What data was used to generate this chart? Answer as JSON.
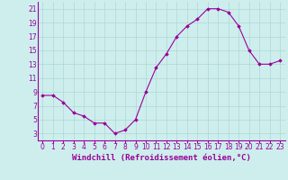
{
  "x": [
    0,
    1,
    2,
    3,
    4,
    5,
    6,
    7,
    8,
    9,
    10,
    11,
    12,
    13,
    14,
    15,
    16,
    17,
    18,
    19,
    20,
    21,
    22,
    23
  ],
  "y": [
    8.5,
    8.5,
    7.5,
    6.0,
    5.5,
    4.5,
    4.5,
    3.0,
    3.5,
    5.0,
    9.0,
    12.5,
    14.5,
    17.0,
    18.5,
    19.5,
    21.0,
    21.0,
    20.5,
    18.5,
    15.0,
    13.0,
    13.0,
    13.5
  ],
  "line_color": "#990099",
  "marker": "D",
  "marker_size": 1.8,
  "xlabel": "Windchill (Refroidissement éolien,°C)",
  "xlim": [
    -0.5,
    23.5
  ],
  "ylim": [
    2,
    22
  ],
  "yticks": [
    3,
    5,
    7,
    9,
    11,
    13,
    15,
    17,
    19,
    21
  ],
  "xticks": [
    0,
    1,
    2,
    3,
    4,
    5,
    6,
    7,
    8,
    9,
    10,
    11,
    12,
    13,
    14,
    15,
    16,
    17,
    18,
    19,
    20,
    21,
    22,
    23
  ],
  "bg_color": "#cdeeed",
  "grid_color": "#aed8d5",
  "tick_label_fontsize": 5.5,
  "xlabel_fontsize": 6.5
}
